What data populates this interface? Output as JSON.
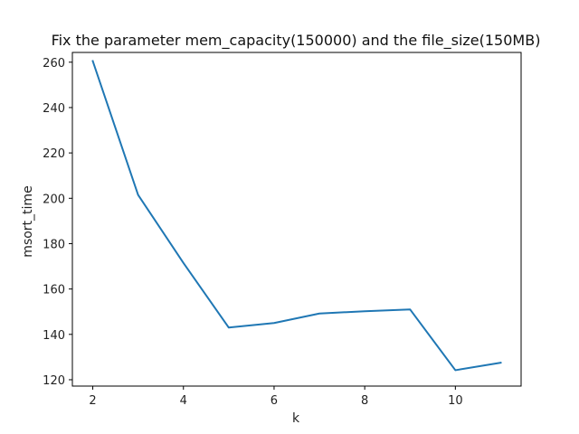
{
  "chart_data": {
    "type": "line",
    "title": "Fix the parameter mem_capacity(150000) and the file_size(150MB)",
    "xlabel": "k",
    "ylabel": "msort_time",
    "xlim": [
      1.55,
      11.45
    ],
    "ylim": [
      117.2,
      264.3
    ],
    "x_ticks": [
      2,
      4,
      6,
      8,
      10
    ],
    "y_ticks": [
      120,
      140,
      160,
      180,
      200,
      220,
      240,
      260
    ],
    "grid": false,
    "series": [
      {
        "color": "#1f77b4",
        "x": [
          2,
          3,
          4,
          5,
          6,
          7,
          8,
          9,
          10,
          11
        ],
        "y": [
          260.5,
          201.5,
          171.5,
          143.0,
          145.0,
          149.2,
          150.2,
          151.0,
          124.2,
          127.5
        ]
      }
    ]
  }
}
